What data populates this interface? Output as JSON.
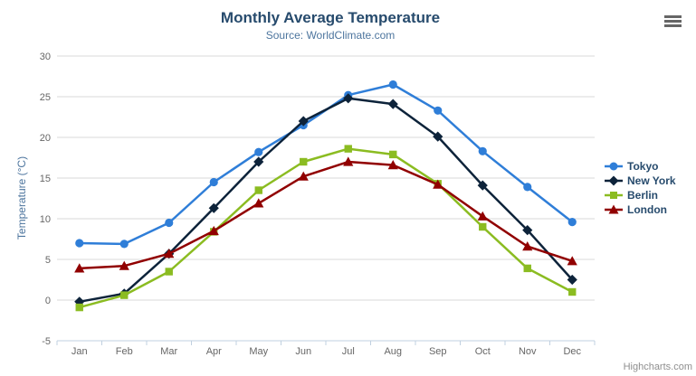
{
  "chart_data": {
    "type": "line",
    "title": "Monthly Average Temperature",
    "subtitle": "Source: WorldClimate.com",
    "xlabel": "",
    "ylabel": "Temperature (°C)",
    "ylim": [
      -5,
      30
    ],
    "yticks": [
      -5,
      0,
      5,
      10,
      15,
      20,
      25,
      30
    ],
    "grid": true,
    "legend_position": "right",
    "categories": [
      "Jan",
      "Feb",
      "Mar",
      "Apr",
      "May",
      "Jun",
      "Jul",
      "Aug",
      "Sep",
      "Oct",
      "Nov",
      "Dec"
    ],
    "series": [
      {
        "name": "Tokyo",
        "color": "#2f7ed8",
        "marker": "circle",
        "values": [
          7.0,
          6.9,
          9.5,
          14.5,
          18.2,
          21.5,
          25.2,
          26.5,
          23.3,
          18.3,
          13.9,
          9.6
        ]
      },
      {
        "name": "New York",
        "color": "#0d233a",
        "marker": "diamond",
        "values": [
          -0.2,
          0.8,
          5.7,
          11.3,
          17.0,
          22.0,
          24.8,
          24.1,
          20.1,
          14.1,
          8.6,
          2.5
        ]
      },
      {
        "name": "Berlin",
        "color": "#8bbc21",
        "marker": "square",
        "values": [
          -0.9,
          0.6,
          3.5,
          8.4,
          13.5,
          17.0,
          18.6,
          17.9,
          14.3,
          9.0,
          3.9,
          1.0
        ]
      },
      {
        "name": "London",
        "color": "#910000",
        "marker": "triangle",
        "values": [
          3.9,
          4.2,
          5.7,
          8.5,
          11.9,
          15.2,
          17.0,
          16.6,
          14.2,
          10.3,
          6.6,
          4.8
        ]
      }
    ],
    "axis_colors": {
      "grid": "#d8d8d8",
      "axis_line": "#c0d0e0",
      "tick_label": "#666666"
    }
  },
  "credit": "Highcharts.com"
}
